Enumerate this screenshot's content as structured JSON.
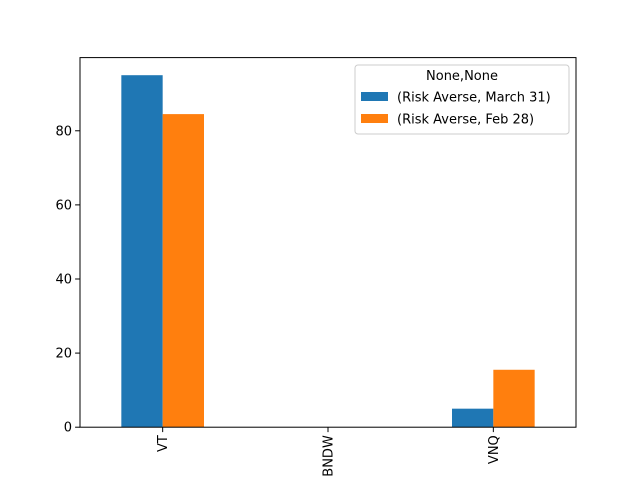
{
  "chart_data": {
    "type": "bar",
    "categories": [
      "VT",
      "BNDW",
      "VNQ"
    ],
    "series": [
      {
        "name": "(Risk Averse, March 31)",
        "color": "#1f77b4",
        "values": [
          95,
          0,
          5
        ]
      },
      {
        "name": "(Risk Averse, Feb 28)",
        "color": "#ff7f0e",
        "values": [
          84.5,
          0,
          15.5
        ]
      }
    ],
    "ylim": [
      0,
      99.75
    ],
    "yticks": [
      0,
      20,
      40,
      60,
      80
    ],
    "legend": {
      "title": "None,None",
      "placement": "top-right"
    },
    "grid": false,
    "xtick_rotation": 90
  }
}
